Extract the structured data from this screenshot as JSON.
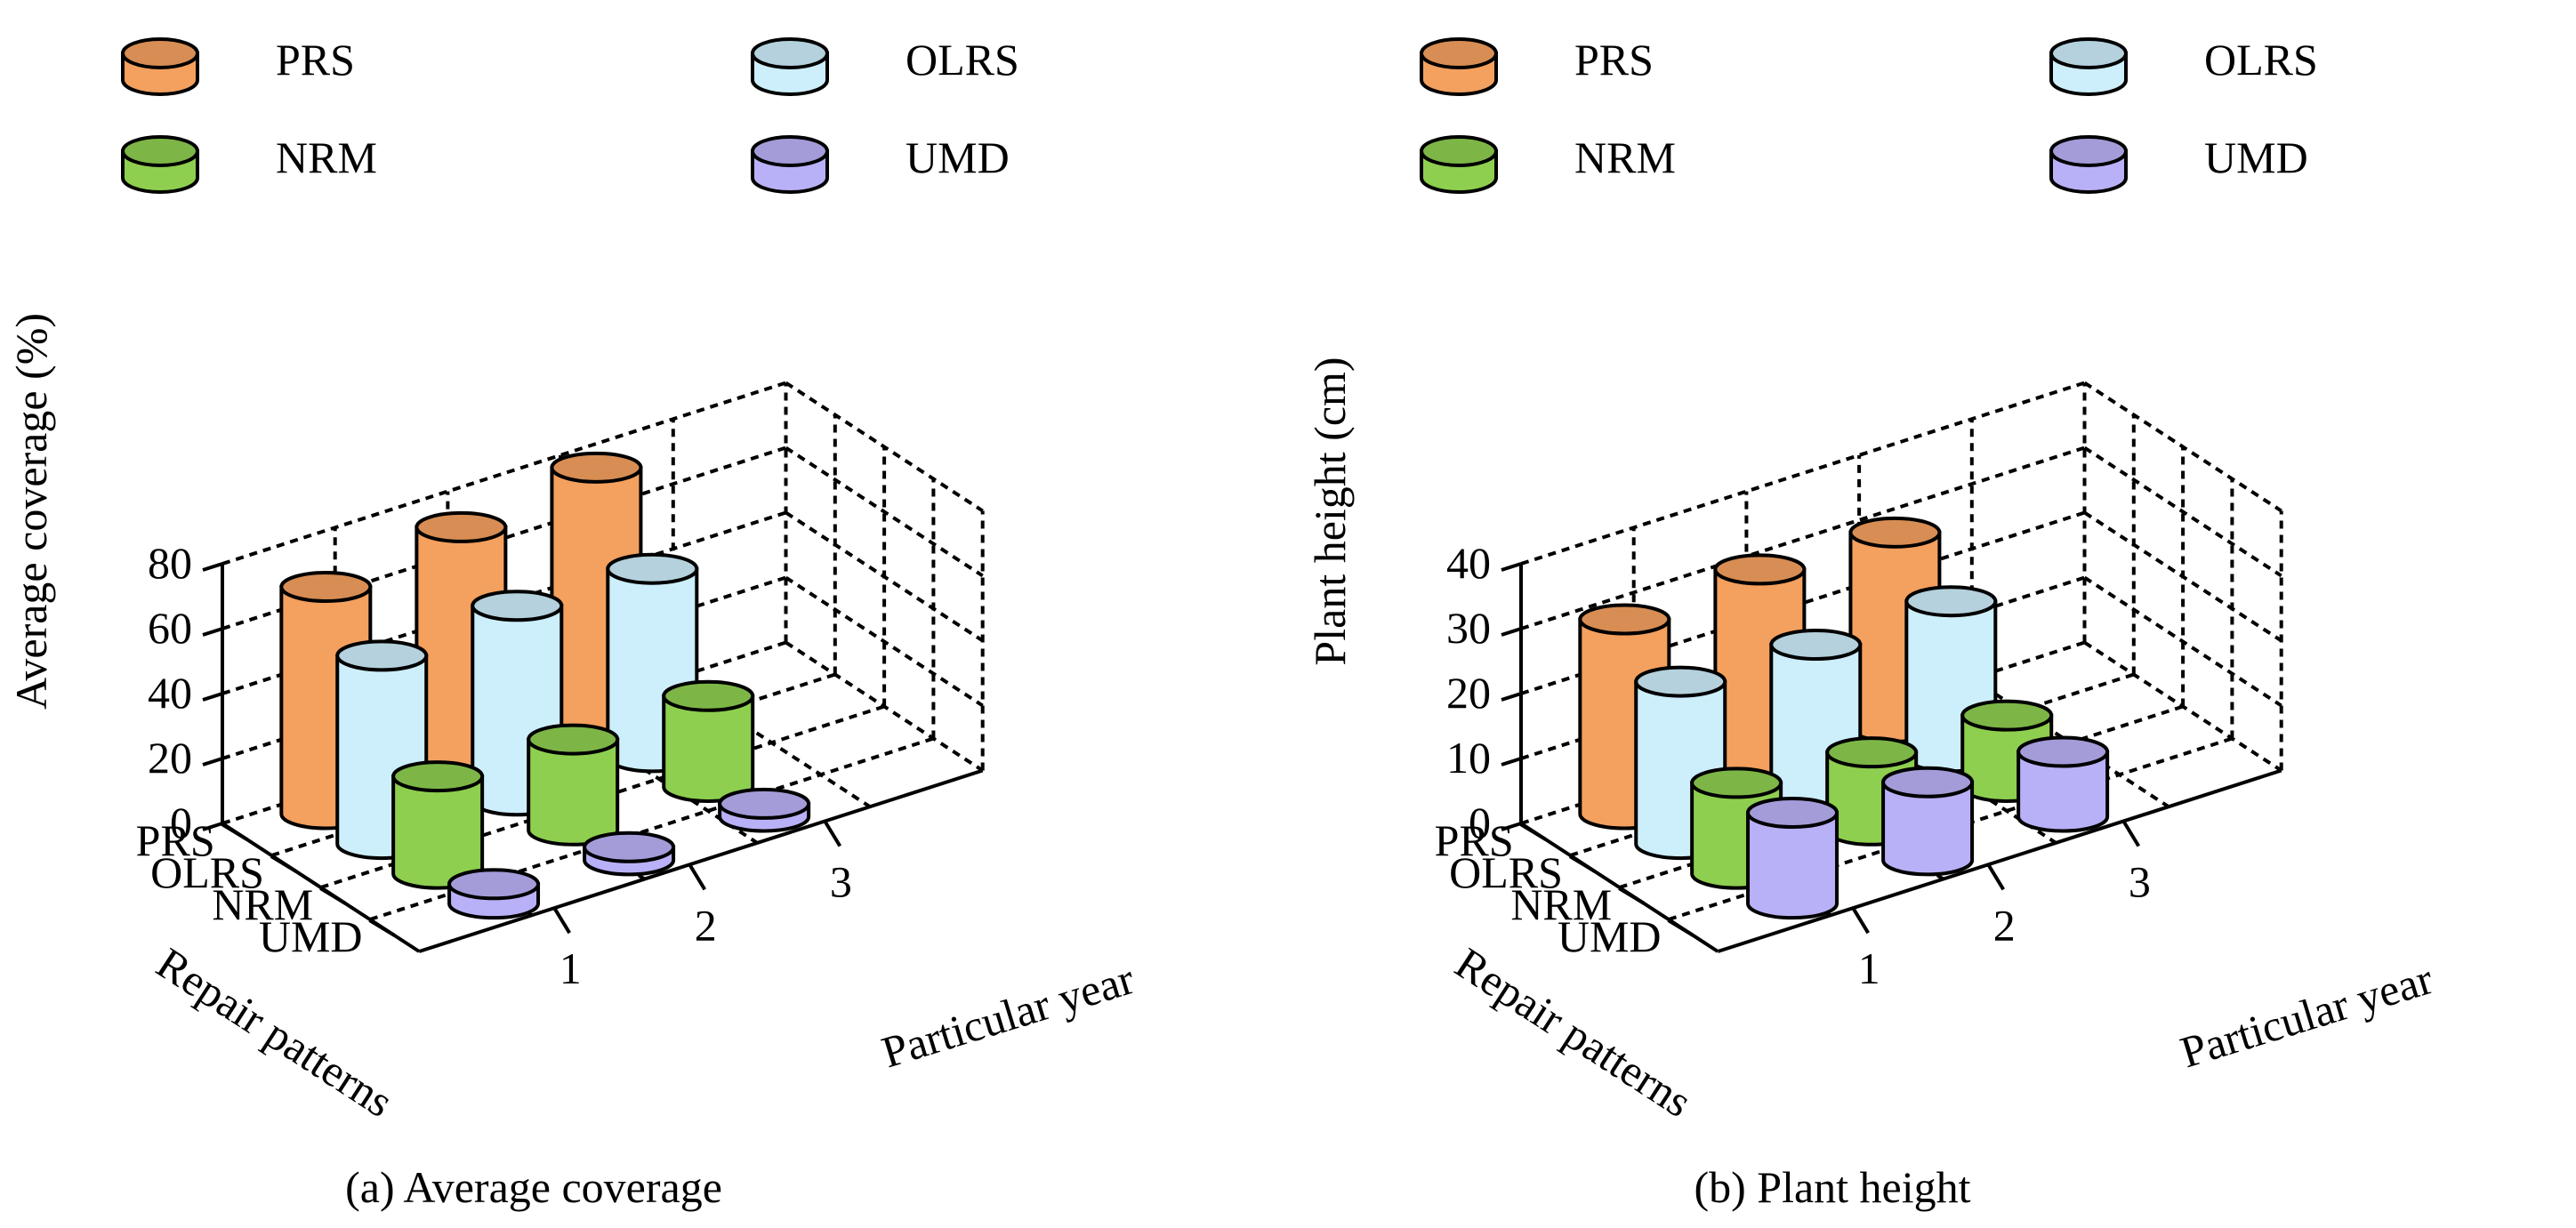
{
  "colors": {
    "PRS": "#f4a05e",
    "OLRS": "#cdeefb",
    "NRM": "#8ecf4f",
    "UMD": "#b9b1f7",
    "outline": "#000000",
    "background": "#ffffff"
  },
  "chart_data": [
    {
      "type": "bar3d",
      "title": "(a) Average coverage",
      "zlabel": "Average coverage (%)",
      "xlabel": "Particular year",
      "ylabel": "Repair patterns",
      "zlim": [
        0,
        80
      ],
      "zticks": [
        "0",
        "20",
        "40",
        "60",
        "80"
      ],
      "categories": [
        "1",
        "2",
        "3"
      ],
      "legend": [
        "PRS",
        "OLRS",
        "NRM",
        "UMD"
      ],
      "series": [
        {
          "name": "PRS",
          "values": [
            70,
            75,
            80
          ]
        },
        {
          "name": "OLRS",
          "values": [
            58,
            60,
            58
          ]
        },
        {
          "name": "NRM",
          "values": [
            30,
            28,
            28
          ]
        },
        {
          "name": "UMD",
          "values": [
            6,
            4,
            4
          ]
        }
      ]
    },
    {
      "type": "bar3d",
      "title": "(b) Plant height",
      "zlabel": "Plant height (cm)",
      "xlabel": "Particular year",
      "ylabel": "Repair patterns",
      "zlim": [
        0,
        40
      ],
      "zticks": [
        "0",
        "10",
        "20",
        "30",
        "40"
      ],
      "categories": [
        "1",
        "2",
        "3"
      ],
      "legend": [
        "PRS",
        "OLRS",
        "NRM",
        "UMD"
      ],
      "series": [
        {
          "name": "PRS",
          "values": [
            30,
            31,
            30
          ]
        },
        {
          "name": "OLRS",
          "values": [
            25,
            24,
            24
          ]
        },
        {
          "name": "NRM",
          "values": [
            14,
            12,
            11
          ]
        },
        {
          "name": "UMD",
          "values": [
            14,
            12,
            10
          ]
        }
      ]
    }
  ]
}
